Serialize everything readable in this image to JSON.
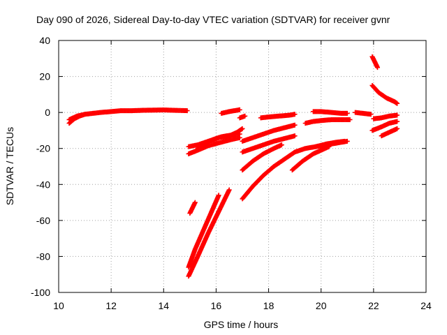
{
  "chart_data": {
    "type": "scatter",
    "title": "Day 090 of 2026, Sidereal Day-to-day VTEC variation (SDTVAR) for receiver gvnr",
    "xlabel": "GPS time / hours",
    "ylabel": "SDTVAR / TECUs",
    "xlim": [
      10,
      24
    ],
    "ylim": [
      -100,
      40
    ],
    "xticks": [
      10,
      12,
      14,
      16,
      18,
      20,
      22,
      24
    ],
    "yticks": [
      -100,
      -80,
      -60,
      -40,
      -20,
      0,
      20,
      40
    ],
    "grid": true,
    "legend": "none",
    "marker": "plus",
    "color": "#ff0000",
    "series": [
      {
        "x": [
          10.4,
          10.6,
          10.8,
          11.0,
          11.3,
          11.6,
          12.0,
          12.4,
          12.8,
          13.2,
          13.6,
          14.0,
          14.4,
          14.9
        ],
        "y": [
          -6,
          -3.5,
          -2,
          -1,
          -0.5,
          0,
          0.5,
          1,
          1,
          1.2,
          1.3,
          1.4,
          1.2,
          1
        ]
      },
      {
        "x": [
          10.4,
          10.7,
          11.0
        ],
        "y": [
          -4,
          -2,
          -1
        ]
      },
      {
        "x": [
          14.95,
          15.3,
          15.7,
          16.1,
          16.5,
          16.8,
          17.0
        ],
        "y": [
          -19,
          -18,
          -16,
          -14,
          -13,
          -11,
          -9
        ]
      },
      {
        "x": [
          14.95,
          15.3,
          15.7,
          16.2,
          16.6,
          16.9
        ],
        "y": [
          -23,
          -21,
          -18.5,
          -16.5,
          -15,
          -14
        ]
      },
      {
        "x": [
          15.3,
          15.6,
          15.9,
          16.2,
          16.6,
          16.9
        ],
        "y": [
          -20,
          -17,
          -15,
          -13.5,
          -12.5,
          -12
        ]
      },
      {
        "x": [
          15.0,
          15.1,
          15.2
        ],
        "y": [
          -56,
          -53,
          -50
        ]
      },
      {
        "x": [
          14.95,
          15.2,
          15.5,
          15.8,
          16.1
        ],
        "y": [
          -86,
          -76,
          -66,
          -56,
          -46
        ]
      },
      {
        "x": [
          14.95,
          15.3,
          15.7,
          16.1,
          16.5
        ],
        "y": [
          -91,
          -80,
          -67,
          -55,
          -43
        ]
      },
      {
        "x": [
          16.2,
          16.5,
          16.9
        ],
        "y": [
          -0.5,
          0.5,
          1.5
        ]
      },
      {
        "x": [
          16.9,
          17.1
        ],
        "y": [
          -3,
          -2
        ]
      },
      {
        "x": [
          17.0,
          17.4,
          17.8,
          18.2,
          18.6,
          19.0
        ],
        "y": [
          -16,
          -14,
          -12,
          -10,
          -8.5,
          -7
        ]
      },
      {
        "x": [
          17.0,
          17.4,
          17.8,
          18.2,
          18.6,
          19.0
        ],
        "y": [
          -22,
          -20,
          -18,
          -16,
          -14.5,
          -13
        ]
      },
      {
        "x": [
          17.0,
          17.4,
          17.8,
          18.2,
          18.5
        ],
        "y": [
          -32,
          -27,
          -23,
          -20,
          -18
        ]
      },
      {
        "x": [
          17.0,
          17.4,
          17.8,
          18.2,
          18.6,
          19.0,
          19.4,
          19.8,
          20.2,
          20.6,
          21.0
        ],
        "y": [
          -48,
          -41,
          -35,
          -30,
          -26,
          -22,
          -20,
          -19,
          -18,
          -17,
          -16
        ]
      },
      {
        "x": [
          17.7,
          18.0,
          18.4,
          18.8,
          19.0
        ],
        "y": [
          -3,
          -2.5,
          -2,
          -1.5,
          -1
        ]
      },
      {
        "x": [
          18.9,
          19.3,
          19.7,
          20.0,
          20.3
        ],
        "y": [
          -32,
          -27,
          -23,
          -21,
          -19
        ]
      },
      {
        "x": [
          19.4,
          19.7,
          20.0,
          20.4,
          20.8,
          21.1
        ],
        "y": [
          -6,
          -5,
          -4.5,
          -4,
          -4,
          -4
        ]
      },
      {
        "x": [
          19.7,
          20.0,
          20.4,
          20.8,
          21.0
        ],
        "y": [
          0.5,
          0.5,
          0,
          -0.5,
          -0.5
        ]
      },
      {
        "x": [
          19.8,
          20.2,
          20.6,
          20.9
        ],
        "y": [
          -19,
          -17.5,
          -16.5,
          -16
        ]
      },
      {
        "x": [
          21.3,
          21.6,
          21.9
        ],
        "y": [
          0,
          -0.5,
          -1
        ]
      },
      {
        "x": [
          21.95,
          22.05,
          22.15
        ],
        "y": [
          31,
          28,
          25
        ]
      },
      {
        "x": [
          21.95,
          22.2,
          22.5,
          22.8,
          22.9
        ],
        "y": [
          15,
          11,
          8,
          6,
          5
        ]
      },
      {
        "x": [
          22.0,
          22.3,
          22.6,
          22.9
        ],
        "y": [
          -3.5,
          -3,
          -2,
          -1.5
        ]
      },
      {
        "x": [
          21.95,
          22.3,
          22.6,
          22.9
        ],
        "y": [
          -10,
          -8,
          -6,
          -5
        ]
      },
      {
        "x": [
          22.3,
          22.6,
          22.9
        ],
        "y": [
          -13,
          -11,
          -9
        ]
      }
    ]
  }
}
